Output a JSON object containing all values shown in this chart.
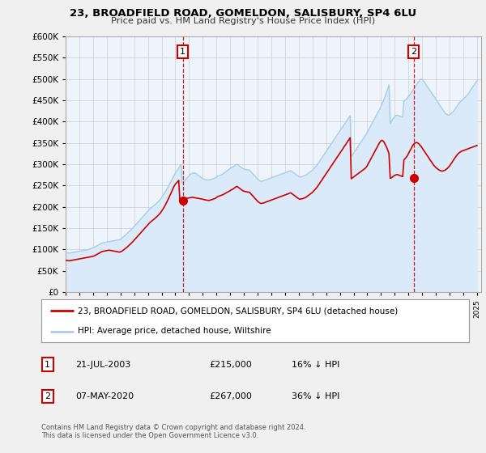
{
  "title": "23, BROADFIELD ROAD, GOMELDON, SALISBURY, SP4 6LU",
  "subtitle": "Price paid vs. HM Land Registry's House Price Index (HPI)",
  "legend_entry1": "23, BROADFIELD ROAD, GOMELDON, SALISBURY, SP4 6LU (detached house)",
  "legend_entry2": "HPI: Average price, detached house, Wiltshire",
  "annotation1_label": "1",
  "annotation1_date": "21-JUL-2003",
  "annotation1_price": "£215,000",
  "annotation1_hpi": "16% ↓ HPI",
  "annotation2_label": "2",
  "annotation2_date": "07-MAY-2020",
  "annotation2_price": "£267,000",
  "annotation2_hpi": "36% ↓ HPI",
  "footnote": "Contains HM Land Registry data © Crown copyright and database right 2024.\nThis data is licensed under the Open Government Licence v3.0.",
  "hpi_color": "#aacce8",
  "hpi_fill_color": "#daeaf8",
  "price_color": "#cc0000",
  "annotation_color": "#cc0000",
  "vline_color": "#cc0000",
  "background_color": "#f0f0f0",
  "plot_bg_color": "#eef4fb",
  "ylim": [
    0,
    600000
  ],
  "yticks": [
    0,
    50000,
    100000,
    150000,
    200000,
    250000,
    300000,
    350000,
    400000,
    450000,
    500000,
    550000,
    600000
  ],
  "sale1_year": 2003.55,
  "sale1_price": 215000,
  "sale2_year": 2020.37,
  "sale2_price": 267000,
  "hpi_years": [
    1995.0,
    1995.08,
    1995.17,
    1995.25,
    1995.33,
    1995.42,
    1995.5,
    1995.58,
    1995.67,
    1995.75,
    1995.83,
    1995.92,
    1996.0,
    1996.08,
    1996.17,
    1996.25,
    1996.33,
    1996.42,
    1996.5,
    1996.58,
    1996.67,
    1996.75,
    1996.83,
    1996.92,
    1997.0,
    1997.08,
    1997.17,
    1997.25,
    1997.33,
    1997.42,
    1997.5,
    1997.58,
    1997.67,
    1997.75,
    1997.83,
    1997.92,
    1998.0,
    1998.08,
    1998.17,
    1998.25,
    1998.33,
    1998.42,
    1998.5,
    1998.58,
    1998.67,
    1998.75,
    1998.83,
    1998.92,
    1999.0,
    1999.08,
    1999.17,
    1999.25,
    1999.33,
    1999.42,
    1999.5,
    1999.58,
    1999.67,
    1999.75,
    1999.83,
    1999.92,
    2000.0,
    2000.08,
    2000.17,
    2000.25,
    2000.33,
    2000.42,
    2000.5,
    2000.58,
    2000.67,
    2000.75,
    2000.83,
    2000.92,
    2001.0,
    2001.08,
    2001.17,
    2001.25,
    2001.33,
    2001.42,
    2001.5,
    2001.58,
    2001.67,
    2001.75,
    2001.83,
    2001.92,
    2002.0,
    2002.08,
    2002.17,
    2002.25,
    2002.33,
    2002.42,
    2002.5,
    2002.58,
    2002.67,
    2002.75,
    2002.83,
    2002.92,
    2003.0,
    2003.08,
    2003.17,
    2003.25,
    2003.33,
    2003.42,
    2003.5,
    2003.58,
    2003.67,
    2003.75,
    2003.83,
    2003.92,
    2004.0,
    2004.08,
    2004.17,
    2004.25,
    2004.33,
    2004.42,
    2004.5,
    2004.58,
    2004.67,
    2004.75,
    2004.83,
    2004.92,
    2005.0,
    2005.08,
    2005.17,
    2005.25,
    2005.33,
    2005.42,
    2005.5,
    2005.58,
    2005.67,
    2005.75,
    2005.83,
    2005.92,
    2006.0,
    2006.08,
    2006.17,
    2006.25,
    2006.33,
    2006.42,
    2006.5,
    2006.58,
    2006.67,
    2006.75,
    2006.83,
    2006.92,
    2007.0,
    2007.08,
    2007.17,
    2007.25,
    2007.33,
    2007.42,
    2007.5,
    2007.58,
    2007.67,
    2007.75,
    2007.83,
    2007.92,
    2008.0,
    2008.08,
    2008.17,
    2008.25,
    2008.33,
    2008.42,
    2008.5,
    2008.58,
    2008.67,
    2008.75,
    2008.83,
    2008.92,
    2009.0,
    2009.08,
    2009.17,
    2009.25,
    2009.33,
    2009.42,
    2009.5,
    2009.58,
    2009.67,
    2009.75,
    2009.83,
    2009.92,
    2010.0,
    2010.08,
    2010.17,
    2010.25,
    2010.33,
    2010.42,
    2010.5,
    2010.58,
    2010.67,
    2010.75,
    2010.83,
    2010.92,
    2011.0,
    2011.08,
    2011.17,
    2011.25,
    2011.33,
    2011.42,
    2011.5,
    2011.58,
    2011.67,
    2011.75,
    2011.83,
    2011.92,
    2012.0,
    2012.08,
    2012.17,
    2012.25,
    2012.33,
    2012.42,
    2012.5,
    2012.58,
    2012.67,
    2012.75,
    2012.83,
    2012.92,
    2013.0,
    2013.08,
    2013.17,
    2013.25,
    2013.33,
    2013.42,
    2013.5,
    2013.58,
    2013.67,
    2013.75,
    2013.83,
    2013.92,
    2014.0,
    2014.08,
    2014.17,
    2014.25,
    2014.33,
    2014.42,
    2014.5,
    2014.58,
    2014.67,
    2014.75,
    2014.83,
    2014.92,
    2015.0,
    2015.08,
    2015.17,
    2015.25,
    2015.33,
    2015.42,
    2015.5,
    2015.58,
    2015.67,
    2015.75,
    2015.83,
    2015.92,
    2016.0,
    2016.08,
    2016.17,
    2016.25,
    2016.33,
    2016.42,
    2016.5,
    2016.58,
    2016.67,
    2016.75,
    2016.83,
    2016.92,
    2017.0,
    2017.08,
    2017.17,
    2017.25,
    2017.33,
    2017.42,
    2017.5,
    2017.58,
    2017.67,
    2017.75,
    2017.83,
    2017.92,
    2018.0,
    2018.08,
    2018.17,
    2018.25,
    2018.33,
    2018.42,
    2018.5,
    2018.58,
    2018.67,
    2018.75,
    2018.83,
    2018.92,
    2019.0,
    2019.08,
    2019.17,
    2019.25,
    2019.33,
    2019.42,
    2019.5,
    2019.58,
    2019.67,
    2019.75,
    2019.83,
    2019.92,
    2020.0,
    2020.08,
    2020.17,
    2020.25,
    2020.33,
    2020.42,
    2020.5,
    2020.58,
    2020.67,
    2020.75,
    2020.83,
    2020.92,
    2021.0,
    2021.08,
    2021.17,
    2021.25,
    2021.33,
    2021.42,
    2021.5,
    2021.58,
    2021.67,
    2021.75,
    2021.83,
    2021.92,
    2022.0,
    2022.08,
    2022.17,
    2022.25,
    2022.33,
    2022.42,
    2022.5,
    2022.58,
    2022.67,
    2022.75,
    2022.83,
    2022.92,
    2023.0,
    2023.08,
    2023.17,
    2023.25,
    2023.33,
    2023.42,
    2023.5,
    2023.58,
    2023.67,
    2023.75,
    2023.83,
    2023.92,
    2024.0,
    2024.08,
    2024.17,
    2024.25,
    2024.33,
    2024.42,
    2024.5,
    2024.58,
    2024.67,
    2024.75,
    2024.83,
    2024.92,
    2025.0
  ],
  "hpi_values": [
    93000,
    92500,
    92000,
    91500,
    92000,
    92500,
    93000,
    93500,
    94000,
    94500,
    95000,
    95500,
    96000,
    96500,
    97000,
    97500,
    98000,
    98500,
    99000,
    99500,
    100000,
    101000,
    102000,
    103000,
    104000,
    105000,
    106500,
    108000,
    109500,
    111000,
    112500,
    114000,
    115500,
    116000,
    116500,
    117000,
    117500,
    118000,
    118500,
    119000,
    119500,
    120000,
    120500,
    121000,
    121500,
    122000,
    122500,
    123000,
    124000,
    126000,
    128000,
    130500,
    133000,
    135500,
    138000,
    140500,
    143000,
    145500,
    148000,
    151000,
    154000,
    157000,
    160000,
    163000,
    166000,
    169000,
    172000,
    175000,
    178000,
    181000,
    184000,
    187000,
    190000,
    193000,
    196000,
    198000,
    200000,
    202000,
    204500,
    207000,
    209500,
    212000,
    215000,
    218000,
    222000,
    226000,
    230000,
    234500,
    239000,
    244000,
    249000,
    254000,
    259000,
    264000,
    269000,
    274000,
    279000,
    283000,
    287000,
    291000,
    295000,
    299000,
    255000,
    258000,
    261000,
    264000,
    267000,
    270000,
    273000,
    276000,
    278000,
    278500,
    279000,
    279500,
    278000,
    276000,
    274000,
    272000,
    270000,
    268000,
    266000,
    265000,
    264500,
    264000,
    263500,
    263000,
    263500,
    264000,
    265000,
    266000,
    267000,
    268000,
    270000,
    272000,
    273000,
    274000,
    275000,
    276000,
    278000,
    280000,
    282000,
    284000,
    286000,
    288000,
    290000,
    292000,
    293000,
    295000,
    297000,
    299000,
    300000,
    298000,
    296000,
    294000,
    292000,
    290000,
    289000,
    288000,
    287500,
    287000,
    286500,
    286000,
    283000,
    280000,
    277000,
    274000,
    271000,
    268000,
    265000,
    263000,
    261000,
    260000,
    260500,
    261000,
    262000,
    263000,
    264000,
    265000,
    266000,
    267000,
    268000,
    269000,
    270000,
    271000,
    272000,
    273000,
    274000,
    275000,
    276000,
    277000,
    278000,
    279000,
    280000,
    281000,
    282000,
    283000,
    284000,
    285000,
    283000,
    281000,
    279000,
    277000,
    275000,
    273000,
    271000,
    270000,
    270500,
    271000,
    272000,
    273000,
    274000,
    276000,
    278000,
    280000,
    282000,
    284000,
    286000,
    289000,
    292000,
    295000,
    298000,
    302000,
    306000,
    310000,
    314000,
    318000,
    322000,
    326000,
    330000,
    334000,
    338000,
    342000,
    346000,
    350000,
    354000,
    358000,
    362000,
    366000,
    370000,
    374000,
    378000,
    382000,
    386000,
    390000,
    394000,
    398000,
    402000,
    406000,
    410000,
    414000,
    318000,
    322000,
    326000,
    330000,
    334000,
    338000,
    342000,
    346000,
    350000,
    354000,
    358000,
    362000,
    366000,
    370000,
    375000,
    380000,
    385000,
    390000,
    395000,
    400000,
    405000,
    410000,
    415000,
    420000,
    425000,
    430000,
    436000,
    442000,
    448000,
    455000,
    462000,
    470000,
    478000,
    486000,
    395000,
    400000,
    405000,
    408000,
    411000,
    414000,
    415000,
    414000,
    413000,
    412000,
    411000,
    410000,
    448000,
    450000,
    452000,
    455000,
    458000,
    462000,
    466000,
    470000,
    474000,
    478000,
    482000,
    486000,
    490000,
    494000,
    498000,
    500000,
    498000,
    496000,
    492000,
    488000,
    484000,
    480000,
    476000,
    472000,
    468000,
    464000,
    460000,
    456000,
    452000,
    448000,
    444000,
    440000,
    436000,
    432000,
    428000,
    424000,
    420000,
    418000,
    416000,
    415000,
    416000,
    418000,
    420000,
    423000,
    426000,
    430000,
    434000,
    438000,
    442000,
    446000,
    448000,
    450000,
    452000,
    455000,
    458000,
    461000,
    464000,
    468000,
    472000,
    476000,
    480000,
    484000,
    488000,
    492000,
    496000,
    500000,
    504000,
    508000,
    512000,
    516000,
    520000,
    524000,
    528000
  ],
  "price_years": [
    1995.0,
    1995.08,
    1995.17,
    1995.25,
    1995.33,
    1995.42,
    1995.5,
    1995.58,
    1995.67,
    1995.75,
    1995.83,
    1995.92,
    1996.0,
    1996.08,
    1996.17,
    1996.25,
    1996.33,
    1996.42,
    1996.5,
    1996.58,
    1996.67,
    1996.75,
    1996.83,
    1996.92,
    1997.0,
    1997.08,
    1997.17,
    1997.25,
    1997.33,
    1997.42,
    1997.5,
    1997.58,
    1997.67,
    1997.75,
    1997.83,
    1997.92,
    1998.0,
    1998.08,
    1998.17,
    1998.25,
    1998.33,
    1998.42,
    1998.5,
    1998.58,
    1998.67,
    1998.75,
    1998.83,
    1998.92,
    1999.0,
    1999.08,
    1999.17,
    1999.25,
    1999.33,
    1999.42,
    1999.5,
    1999.58,
    1999.67,
    1999.75,
    1999.83,
    1999.92,
    2000.0,
    2000.08,
    2000.17,
    2000.25,
    2000.33,
    2000.42,
    2000.5,
    2000.58,
    2000.67,
    2000.75,
    2000.83,
    2000.92,
    2001.0,
    2001.08,
    2001.17,
    2001.25,
    2001.33,
    2001.42,
    2001.5,
    2001.58,
    2001.67,
    2001.75,
    2001.83,
    2001.92,
    2002.0,
    2002.08,
    2002.17,
    2002.25,
    2002.33,
    2002.42,
    2002.5,
    2002.58,
    2002.67,
    2002.75,
    2002.83,
    2002.92,
    2003.0,
    2003.08,
    2003.17,
    2003.25,
    2003.33,
    2003.42,
    2003.5,
    2003.58,
    2003.67,
    2003.75,
    2003.83,
    2003.92,
    2004.0,
    2004.08,
    2004.17,
    2004.25,
    2004.33,
    2004.42,
    2004.5,
    2004.58,
    2004.67,
    2004.75,
    2004.83,
    2004.92,
    2005.0,
    2005.08,
    2005.17,
    2005.25,
    2005.33,
    2005.42,
    2005.5,
    2005.58,
    2005.67,
    2005.75,
    2005.83,
    2005.92,
    2006.0,
    2006.08,
    2006.17,
    2006.25,
    2006.33,
    2006.42,
    2006.5,
    2006.58,
    2006.67,
    2006.75,
    2006.83,
    2006.92,
    2007.0,
    2007.08,
    2007.17,
    2007.25,
    2007.33,
    2007.42,
    2007.5,
    2007.58,
    2007.67,
    2007.75,
    2007.83,
    2007.92,
    2008.0,
    2008.08,
    2008.17,
    2008.25,
    2008.33,
    2008.42,
    2008.5,
    2008.58,
    2008.67,
    2008.75,
    2008.83,
    2008.92,
    2009.0,
    2009.08,
    2009.17,
    2009.25,
    2009.33,
    2009.42,
    2009.5,
    2009.58,
    2009.67,
    2009.75,
    2009.83,
    2009.92,
    2010.0,
    2010.08,
    2010.17,
    2010.25,
    2010.33,
    2010.42,
    2010.5,
    2010.58,
    2010.67,
    2010.75,
    2010.83,
    2010.92,
    2011.0,
    2011.08,
    2011.17,
    2011.25,
    2011.33,
    2011.42,
    2011.5,
    2011.58,
    2011.67,
    2011.75,
    2011.83,
    2011.92,
    2012.0,
    2012.08,
    2012.17,
    2012.25,
    2012.33,
    2012.42,
    2012.5,
    2012.58,
    2012.67,
    2012.75,
    2012.83,
    2012.92,
    2013.0,
    2013.08,
    2013.17,
    2013.25,
    2013.33,
    2013.42,
    2013.5,
    2013.58,
    2013.67,
    2013.75,
    2013.83,
    2013.92,
    2014.0,
    2014.08,
    2014.17,
    2014.25,
    2014.33,
    2014.42,
    2014.5,
    2014.58,
    2014.67,
    2014.75,
    2014.83,
    2014.92,
    2015.0,
    2015.08,
    2015.17,
    2015.25,
    2015.33,
    2015.42,
    2015.5,
    2015.58,
    2015.67,
    2015.75,
    2015.83,
    2015.92,
    2016.0,
    2016.08,
    2016.17,
    2016.25,
    2016.33,
    2016.42,
    2016.5,
    2016.58,
    2016.67,
    2016.75,
    2016.83,
    2016.92,
    2017.0,
    2017.08,
    2017.17,
    2017.25,
    2017.33,
    2017.42,
    2017.5,
    2017.58,
    2017.67,
    2017.75,
    2017.83,
    2017.92,
    2018.0,
    2018.08,
    2018.17,
    2018.25,
    2018.33,
    2018.42,
    2018.5,
    2018.58,
    2018.67,
    2018.75,
    2018.83,
    2018.92,
    2019.0,
    2019.08,
    2019.17,
    2019.25,
    2019.33,
    2019.42,
    2019.5,
    2019.58,
    2019.67,
    2019.75,
    2019.83,
    2019.92,
    2020.0,
    2020.08,
    2020.17,
    2020.25,
    2020.33,
    2020.42,
    2020.5,
    2020.58,
    2020.67,
    2020.75,
    2020.83,
    2020.92,
    2021.0,
    2021.08,
    2021.17,
    2021.25,
    2021.33,
    2021.42,
    2021.5,
    2021.58,
    2021.67,
    2021.75,
    2021.83,
    2021.92,
    2022.0,
    2022.08,
    2022.17,
    2022.25,
    2022.33,
    2022.42,
    2022.5,
    2022.58,
    2022.67,
    2022.75,
    2022.83,
    2022.92,
    2023.0,
    2023.08,
    2023.17,
    2023.25,
    2023.33,
    2023.42,
    2023.5,
    2023.58,
    2023.67,
    2023.75,
    2023.83,
    2023.92,
    2024.0,
    2024.08,
    2024.17,
    2024.25,
    2024.33,
    2024.42,
    2024.5,
    2024.58,
    2024.67,
    2024.75,
    2024.83,
    2024.92,
    2025.0
  ],
  "price_values": [
    75000,
    74500,
    74000,
    73500,
    74000,
    74500,
    75000,
    75500,
    76000,
    76500,
    77000,
    77500,
    78000,
    78500,
    79000,
    79500,
    80000,
    80500,
    81000,
    81500,
    82000,
    82500,
    83000,
    83500,
    84000,
    85000,
    86500,
    88000,
    89500,
    91000,
    92500,
    94000,
    95500,
    96000,
    96500,
    97000,
    97500,
    98000,
    98500,
    98000,
    97500,
    97000,
    96500,
    96000,
    95500,
    95000,
    94500,
    94000,
    94500,
    96000,
    97500,
    99500,
    101500,
    103500,
    106000,
    108500,
    111000,
    113500,
    116000,
    119000,
    122000,
    125000,
    128000,
    131000,
    134000,
    137000,
    140000,
    143000,
    146000,
    149000,
    152000,
    155000,
    158000,
    161000,
    164000,
    166000,
    168000,
    170000,
    172500,
    175000,
    177500,
    180000,
    183000,
    186000,
    190000,
    194000,
    198500,
    203000,
    208000,
    213500,
    219000,
    225000,
    231000,
    237000,
    243000,
    249000,
    253000,
    256000,
    259000,
    262000,
    215000,
    216000,
    217500,
    218500,
    219000,
    219500,
    220000,
    220500,
    221000,
    221500,
    222000,
    222500,
    222000,
    221500,
    221000,
    220500,
    220000,
    219500,
    219000,
    218500,
    218000,
    217000,
    216500,
    216000,
    215500,
    215000,
    215500,
    216000,
    217000,
    218000,
    219000,
    220000,
    222000,
    224000,
    225000,
    226000,
    227000,
    228000,
    229000,
    230500,
    232000,
    233500,
    235000,
    236500,
    238000,
    240000,
    241000,
    243000,
    245000,
    247000,
    248000,
    246000,
    244000,
    242000,
    240000,
    238000,
    237000,
    236000,
    235500,
    235000,
    234500,
    234000,
    231000,
    228000,
    225000,
    222000,
    219000,
    216000,
    213000,
    211000,
    209000,
    208000,
    208500,
    209000,
    210000,
    211000,
    212000,
    213000,
    214000,
    215000,
    216000,
    217000,
    218000,
    219000,
    220000,
    221000,
    222000,
    223000,
    224000,
    225000,
    226000,
    227000,
    228000,
    229000,
    230000,
    231000,
    232000,
    233000,
    231000,
    229000,
    227000,
    225000,
    223000,
    221000,
    219000,
    218000,
    218500,
    219000,
    220000,
    221000,
    222000,
    224000,
    226000,
    228000,
    230000,
    232000,
    234000,
    237000,
    240000,
    243000,
    246000,
    250000,
    254000,
    258000,
    262000,
    266000,
    270000,
    274000,
    278000,
    282000,
    286000,
    290000,
    294000,
    298000,
    302000,
    306000,
    310000,
    314000,
    318000,
    322000,
    326000,
    330000,
    334000,
    338000,
    342000,
    346000,
    350000,
    354000,
    358000,
    362000,
    266000,
    268000,
    270000,
    272000,
    274000,
    276000,
    278000,
    280000,
    282000,
    284000,
    286000,
    288000,
    290000,
    293000,
    297000,
    302000,
    307000,
    312000,
    317000,
    322000,
    327000,
    332000,
    337000,
    342000,
    347000,
    352000,
    355000,
    356000,
    354000,
    350000,
    345000,
    339000,
    332000,
    325000,
    267000,
    268000,
    270000,
    272000,
    274000,
    275000,
    276000,
    275000,
    274000,
    273000,
    272000,
    271000,
    310000,
    313000,
    316000,
    320000,
    325000,
    330000,
    335000,
    340000,
    345000,
    348000,
    350000,
    351000,
    350000,
    348000,
    345000,
    342000,
    338000,
    334000,
    330000,
    326000,
    322000,
    318000,
    314000,
    310000,
    306000,
    302000,
    298000,
    295000,
    292000,
    290000,
    288000,
    286000,
    285000,
    284000,
    284000,
    285000,
    286000,
    288000,
    290000,
    293000,
    296000,
    300000,
    304000,
    308000,
    312000,
    316000,
    320000,
    323000,
    326000,
    328000,
    330000,
    331000,
    332000,
    333000,
    334000,
    335000,
    336000,
    337000,
    338000,
    339000,
    340000,
    341000,
    342000,
    343000,
    344000,
    345000,
    346000,
    347000,
    348000,
    349000,
    350000,
    351000,
    352000
  ]
}
